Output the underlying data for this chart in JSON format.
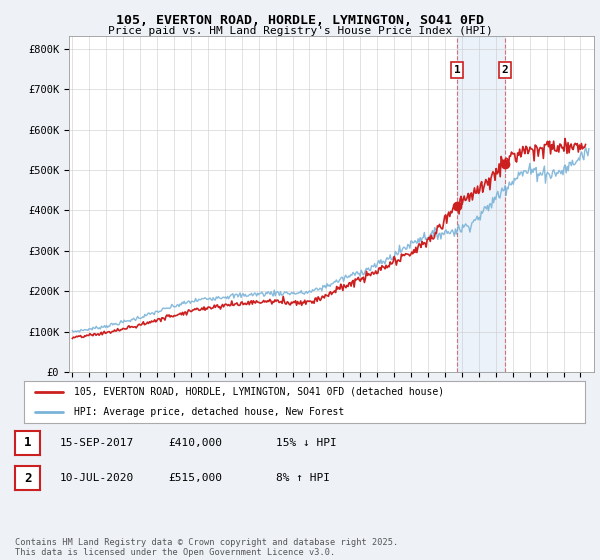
{
  "title1": "105, EVERTON ROAD, HORDLE, LYMINGTON, SO41 0FD",
  "title2": "Price paid vs. HM Land Registry's House Price Index (HPI)",
  "hpi_color": "#7ab3d8",
  "price_color": "#cc2020",
  "marker1_x": 2017.71,
  "marker1_y": 410000,
  "marker2_x": 2020.53,
  "marker2_y": 515000,
  "legend1_text": "105, EVERTON ROAD, HORDLE, LYMINGTON, SO41 0FD (detached house)",
  "legend2_text": "HPI: Average price, detached house, New Forest",
  "table_row1": [
    "1",
    "15-SEP-2017",
    "£410,000",
    "15% ↓ HPI"
  ],
  "table_row2": [
    "2",
    "10-JUL-2020",
    "£515,000",
    "8% ↑ HPI"
  ],
  "footnote": "Contains HM Land Registry data © Crown copyright and database right 2025.\nThis data is licensed under the Open Government Licence v3.0.",
  "background_color": "#eef2f7",
  "plot_bg_color": "#ffffff",
  "yticks": [
    0,
    100000,
    200000,
    300000,
    400000,
    500000,
    600000,
    700000,
    800000
  ],
  "ytick_labels": [
    "£0",
    "£100K",
    "£200K",
    "£300K",
    "£400K",
    "£500K",
    "£600K",
    "£700K",
    "£800K"
  ],
  "ylim": [
    0,
    830000
  ],
  "xlim_start": 1994.8,
  "xlim_end": 2025.8
}
